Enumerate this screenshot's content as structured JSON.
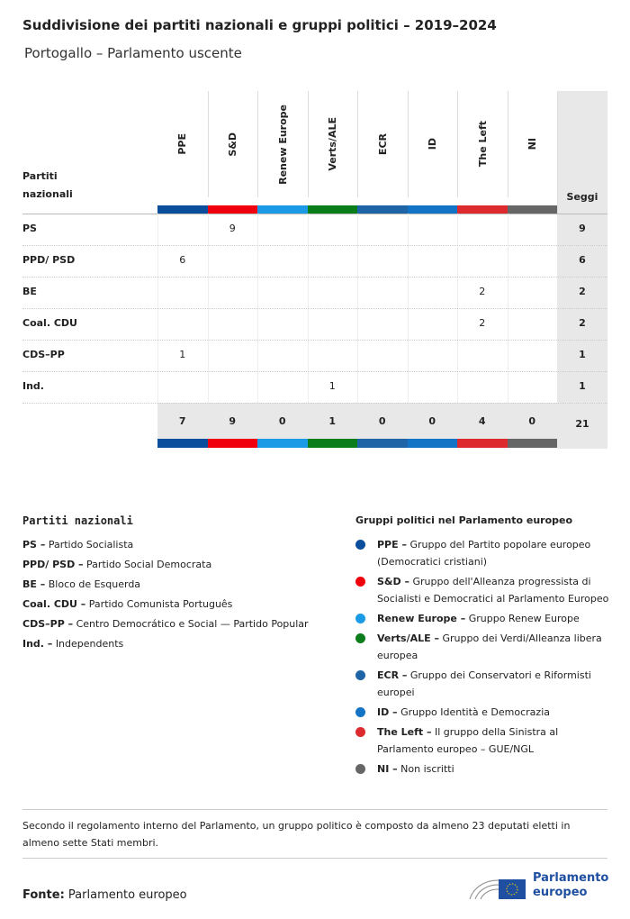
{
  "header": {
    "title": "Suddivisione dei partiti nazionali e gruppi politici – 2019–2024",
    "subtitle": "Portogallo – Parlamento uscente"
  },
  "table": {
    "corner": "Partiti nazionali",
    "total_label": "Seggi",
    "groups": [
      {
        "label": "PPE",
        "color": "#0b4f9c"
      },
      {
        "label": "S&D",
        "color": "#f0000c"
      },
      {
        "label": "Renew Europe",
        "color": "#1b9be6"
      },
      {
        "label": "Verts/ALE",
        "color": "#0b7d1b"
      },
      {
        "label": "ECR",
        "color": "#1f64a7"
      },
      {
        "label": "ID",
        "color": "#1373c5"
      },
      {
        "label": "The Left",
        "color": "#dc2a2e"
      },
      {
        "label": "NI",
        "color": "#666666"
      }
    ],
    "rows": [
      {
        "party": "PS",
        "cells": [
          null,
          9,
          null,
          null,
          null,
          null,
          null,
          null
        ],
        "total": 9
      },
      {
        "party": "PPD/ PSD",
        "cells": [
          6,
          null,
          null,
          null,
          null,
          null,
          null,
          null
        ],
        "total": 6
      },
      {
        "party": "BE",
        "cells": [
          null,
          null,
          null,
          null,
          null,
          null,
          2,
          null
        ],
        "total": 2
      },
      {
        "party": "Coal. CDU",
        "cells": [
          null,
          null,
          null,
          null,
          null,
          null,
          2,
          null
        ],
        "total": 2
      },
      {
        "party": "CDS–PP",
        "cells": [
          1,
          null,
          null,
          null,
          null,
          null,
          null,
          null
        ],
        "total": 1
      },
      {
        "party": "Ind.",
        "cells": [
          null,
          null,
          null,
          1,
          null,
          null,
          null,
          null
        ],
        "total": 1
      }
    ],
    "totals": [
      7,
      9,
      0,
      1,
      0,
      0,
      4,
      0
    ],
    "grand_total": 21
  },
  "legend_parties": {
    "title": "Partiti nazionali",
    "items": [
      {
        "abbr": "PS –",
        "name": "Partido Socialista"
      },
      {
        "abbr": "PPD/ PSD –",
        "name": "Partido Social Democrata"
      },
      {
        "abbr": "BE –",
        "name": "Bloco de Esquerda"
      },
      {
        "abbr": "Coal. CDU –",
        "name": "Partido Comunista Português"
      },
      {
        "abbr": "CDS–PP –",
        "name": "Centro Democrático e Social — Partido Popular"
      },
      {
        "abbr": "Ind. –",
        "name": "Independents"
      }
    ]
  },
  "legend_groups": {
    "title": "Gruppi politici nel Parlamento europeo",
    "items": [
      {
        "abbr": "PPE –",
        "name": "Gruppo del Partito popolare europeo (Democratici cristiani)"
      },
      {
        "abbr": "S&D –",
        "name": "Gruppo dell'Alleanza progressista di Socialisti e Democratici al Parlamento Europeo"
      },
      {
        "abbr": "Renew Europe –",
        "name": "Gruppo Renew Europe"
      },
      {
        "abbr": "Verts/ALE –",
        "name": "Gruppo dei Verdi/Alleanza libera europea"
      },
      {
        "abbr": "ECR –",
        "name": "Gruppo dei Conservatori e Riformisti europei"
      },
      {
        "abbr": "ID –",
        "name": "Gruppo Identità e Democrazia"
      },
      {
        "abbr": "The Left –",
        "name": "Il gruppo della Sinistra al Parlamento europeo – GUE/NGL"
      },
      {
        "abbr": "NI –",
        "name": "Non iscritti"
      }
    ]
  },
  "footer": {
    "note": "Secondo il regolamento interno del Parlamento, un gruppo politico è composto da almeno 23 deputati eletti in almeno sette Stati membri.",
    "source_label": "Fonte:",
    "source": "Parlamento europeo",
    "logo_text": "Parlamento europeo"
  }
}
